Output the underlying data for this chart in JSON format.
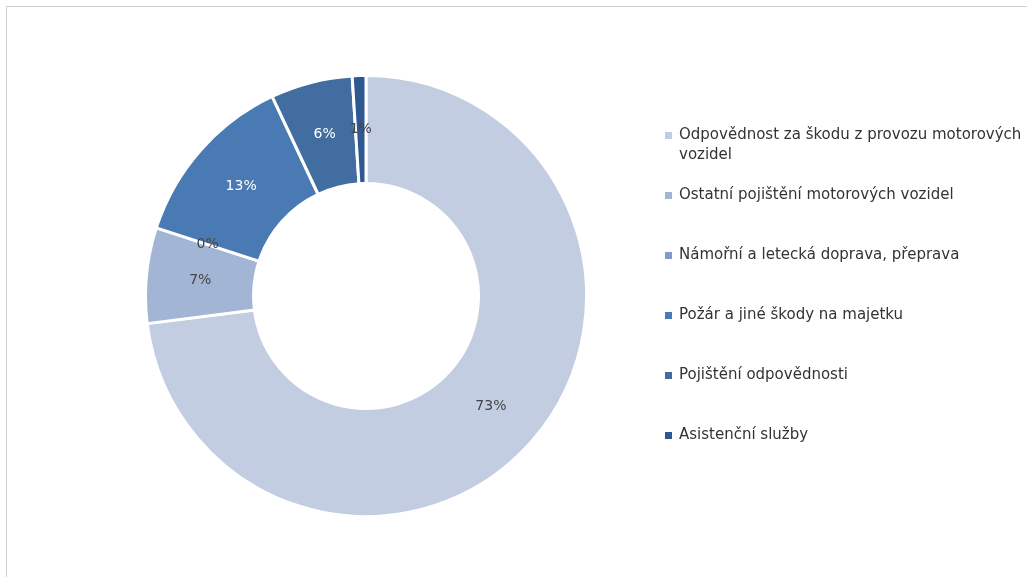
{
  "chart_data": {
    "type": "donut",
    "categories": [
      "Odpovědnost za škodu z provozu motorových vozidel",
      "Ostatní pojištění motorových vozidel",
      "Námořní a letecká doprava, přeprava",
      "Požár a jiné škody na majetku",
      "Pojištění odpovědnosti",
      "Asistenční služby"
    ],
    "values": [
      73,
      7,
      0,
      13,
      6,
      1
    ],
    "value_labels": [
      "73%",
      "7%",
      "0%",
      "13%",
      "6%",
      "1%"
    ],
    "colors": [
      "#c3cde2",
      "#a3b5d5",
      "#7f9ccb",
      "#4a7ab3",
      "#416da0",
      "#2f5790"
    ],
    "legend": "right"
  }
}
